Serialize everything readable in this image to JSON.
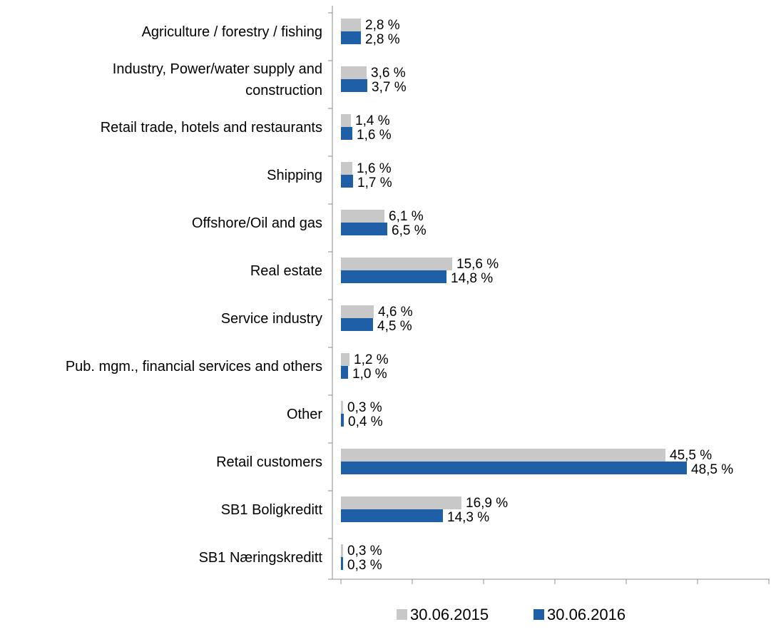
{
  "chart_data": {
    "type": "bar",
    "orientation": "horizontal",
    "title": "",
    "xlabel": "",
    "ylabel": "",
    "xlim": [
      0,
      60
    ],
    "grid": false,
    "legend_position": "bottom",
    "categories": [
      "Agriculture / forestry / fishing",
      "Industry, Power/water supply and construction",
      "Retail trade, hotels and restaurants",
      "Shipping",
      "Offshore/Oil and gas",
      "Real estate",
      "Service industry",
      "Pub. mgm., financial services and others",
      "Other",
      "Retail customers",
      "SB1 Boligkreditt",
      "SB1 Næringskreditt"
    ],
    "category_lines": [
      [
        "Agriculture / forestry / fishing"
      ],
      [
        "Industry, Power/water supply and",
        "construction"
      ],
      [
        "Retail trade, hotels and restaurants"
      ],
      [
        "Shipping"
      ],
      [
        "Offshore/Oil and gas"
      ],
      [
        "Real estate"
      ],
      [
        "Service industry"
      ],
      [
        "Pub. mgm., financial services and others"
      ],
      [
        "Other"
      ],
      [
        "Retail customers"
      ],
      [
        "SB1 Boligkreditt"
      ],
      [
        "SB1 Næringskreditt"
      ]
    ],
    "series": [
      {
        "name": "30.06.2015",
        "color": "#c8c8c8",
        "values": [
          2.8,
          3.6,
          1.4,
          1.6,
          6.1,
          15.6,
          4.6,
          1.2,
          0.3,
          45.5,
          16.9,
          0.3
        ],
        "labels": [
          "2,8 %",
          "3,6 %",
          "1,4 %",
          "1,6 %",
          "6,1 %",
          "15,6 %",
          "4,6 %",
          "1,2 %",
          "0,3 %",
          "45,5 %",
          "16,9 %",
          "0,3 %"
        ]
      },
      {
        "name": "30.06.2016",
        "color": "#1f5fa8",
        "values": [
          2.8,
          3.7,
          1.6,
          1.7,
          6.5,
          14.8,
          4.5,
          1.0,
          0.4,
          48.5,
          14.3,
          0.3
        ],
        "labels": [
          "2,8 %",
          "3,7 %",
          "1,6 %",
          "1,7 %",
          "6,5 %",
          "14,8 %",
          "4,5 %",
          "1,0 %",
          "0,4 %",
          "48,5 %",
          "14,3 %",
          "0,3 %"
        ]
      }
    ]
  }
}
